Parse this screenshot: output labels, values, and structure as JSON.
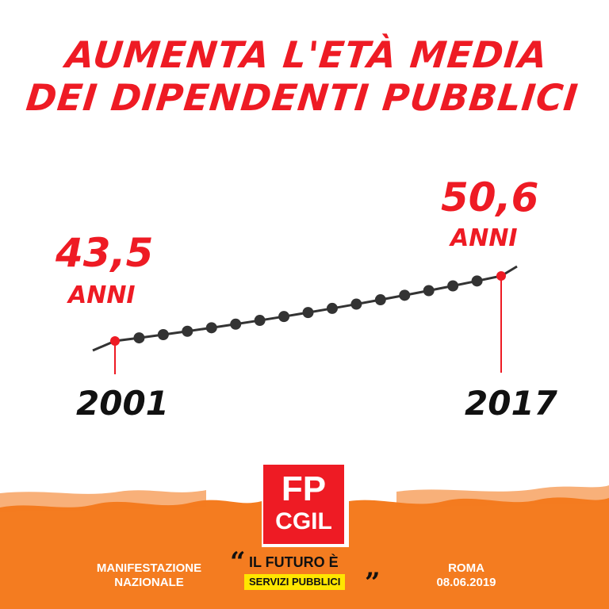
{
  "title": {
    "line1": "AUMENTA L'ETÀ MEDIA",
    "line2": "DEI DIPENDENTI PUBBLICI"
  },
  "chart_data": {
    "type": "line",
    "x": [
      2001,
      2002,
      2003,
      2004,
      2005,
      2006,
      2007,
      2008,
      2009,
      2010,
      2011,
      2012,
      2013,
      2014,
      2015,
      2016,
      2017
    ],
    "highlight": [
      {
        "x": 2001,
        "value_label": "43,5",
        "unit": "ANNI",
        "year_label": "2001"
      },
      {
        "x": 2017,
        "value_label": "50,6",
        "unit": "ANNI",
        "year_label": "2017"
      }
    ],
    "first_value": 43.5,
    "last_value": 50.6,
    "colors": {
      "line": "#333333",
      "point": "#333333",
      "highlight": "#ee1b24"
    }
  },
  "footer": {
    "logo_line1": "FP",
    "logo_line2": "CGIL",
    "left_line1": "MANIFESTAZIONE",
    "left_line2": "NAZIONALE",
    "slogan_line1": "IL FUTURO È",
    "slogan_line2": "SERVIZI PUBBLICI",
    "right_line1": "ROMA",
    "right_line2": "08.06.2019",
    "colors": {
      "band": "#f47c20",
      "logo": "#ee1b24",
      "highlight": "#ffe600"
    }
  }
}
